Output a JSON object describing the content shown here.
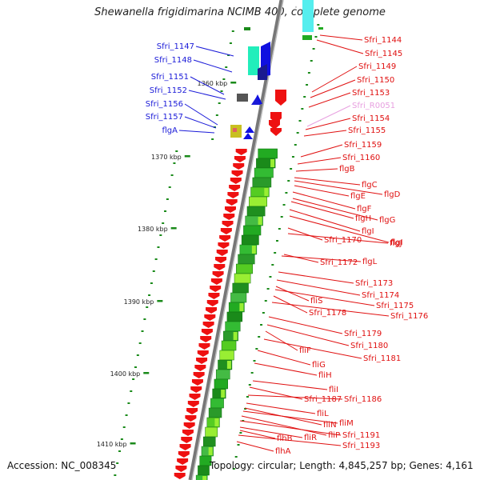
{
  "title": "Shewanella frigidimarina NCIMB 400, complete genome",
  "accession": "Accession: NC_008345",
  "stats": "Topology: circular; Length: 4,845,257 bp; Genes: 4,161",
  "colors": {
    "backbone": "#888888",
    "left_label": "#1a1ad8",
    "right_label": "#e01010",
    "rna_label": "#e8a0e0",
    "tick": "#1a8a1a",
    "gene_forward": "#1010e0",
    "gene_reverse": "#ee1111",
    "cog_green": "#22aa22",
    "cog_light": "#99ee33",
    "cog_cyan": "#22eebb"
  },
  "ruler": [
    {
      "label": "1360 kbp"
    },
    {
      "label": "1370 kbp"
    },
    {
      "label": "1380 kbp"
    },
    {
      "label": "1390 kbp"
    },
    {
      "label": "1400 kbp"
    },
    {
      "label": "1410 kbp"
    }
  ],
  "left_genes": [
    {
      "name": "Sfri_1147"
    },
    {
      "name": "Sfri_1148"
    },
    {
      "name": "Sfri_1151"
    },
    {
      "name": "Sfri_1152"
    },
    {
      "name": "Sfri_1156"
    },
    {
      "name": "Sfri_1157"
    },
    {
      "name": "flgA"
    }
  ],
  "right_genes": [
    {
      "name": "Sfri_1144"
    },
    {
      "name": "Sfri_1145"
    },
    {
      "name": "Sfri_1149"
    },
    {
      "name": "Sfri_1150"
    },
    {
      "name": "Sfri_1153"
    },
    {
      "name": "Sfri_R0051",
      "rna": true
    },
    {
      "name": "Sfri_1154"
    },
    {
      "name": "Sfri_1155"
    },
    {
      "name": "Sfri_1159"
    },
    {
      "name": "Sfri_1160"
    },
    {
      "name": "flgB"
    },
    {
      "name": "flgC"
    },
    {
      "name": "flgD"
    },
    {
      "name": "flgE"
    },
    {
      "name": "flgF"
    },
    {
      "name": "flgG"
    },
    {
      "name": "flgH"
    },
    {
      "name": "flgI"
    },
    {
      "name": "flgI"
    },
    {
      "name": "Sfri_1170"
    },
    {
      "name": "flgJ"
    },
    {
      "name": "Sfri_1172"
    },
    {
      "name": "flgL"
    },
    {
      "name": "Sfri_1173"
    },
    {
      "name": "Sfri_1174"
    },
    {
      "name": "fliS"
    },
    {
      "name": "Sfri_1175"
    },
    {
      "name": "Sfri_1178"
    },
    {
      "name": "Sfri_1176"
    },
    {
      "name": "Sfri_1179"
    },
    {
      "name": "Sfri_1180"
    },
    {
      "name": "fliF"
    },
    {
      "name": "Sfri_1181"
    },
    {
      "name": "fliG"
    },
    {
      "name": "fliH"
    },
    {
      "name": "fliI"
    },
    {
      "name": "Sfri_1187"
    },
    {
      "name": "Sfri_1186"
    },
    {
      "name": "fliL"
    },
    {
      "name": "fliN"
    },
    {
      "name": "fliM"
    },
    {
      "name": "fliP"
    },
    {
      "name": "Sfri_1191"
    },
    {
      "name": "fliR"
    },
    {
      "name": "flhB"
    },
    {
      "name": "Sfri_1193"
    },
    {
      "name": "flhA"
    }
  ]
}
